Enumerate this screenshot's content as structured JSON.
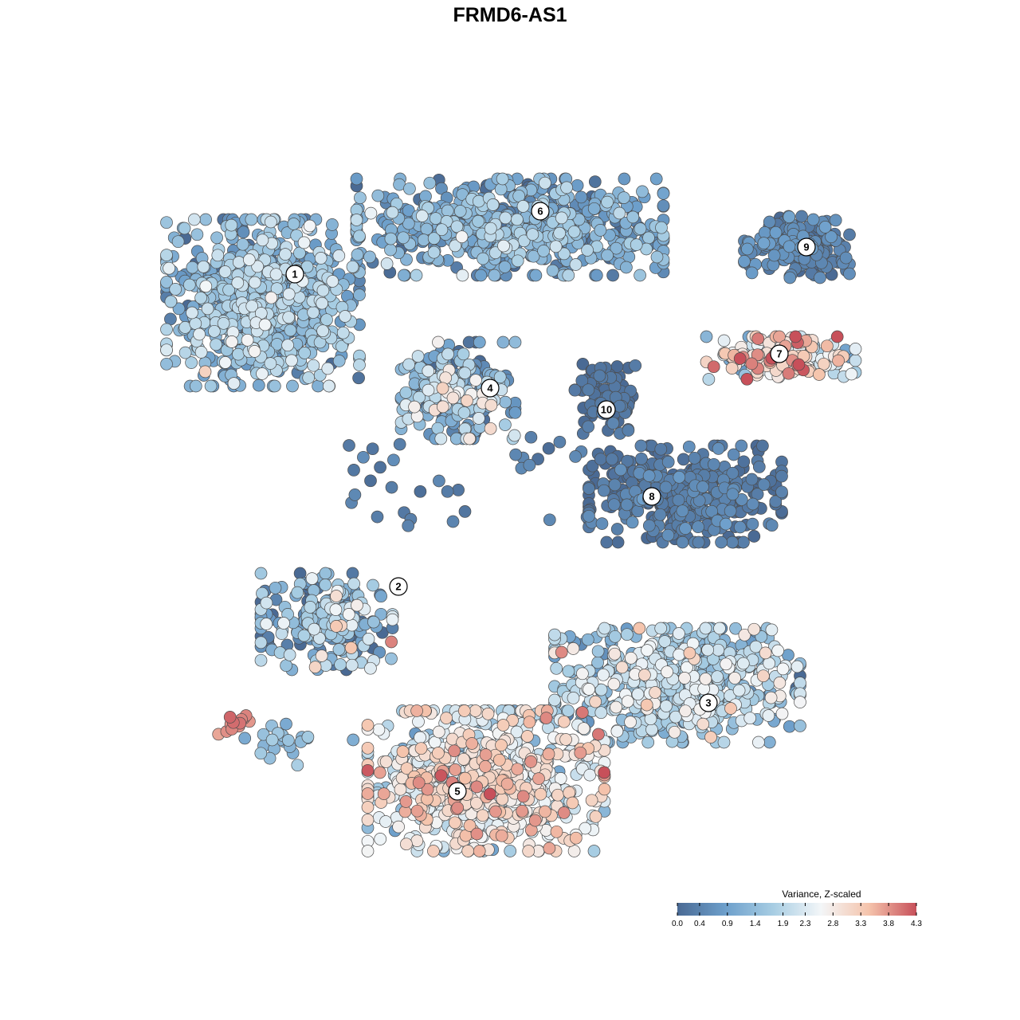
{
  "chart_data": {
    "type": "scatter",
    "title": "FRMD6-AS1",
    "xlabel": "",
    "ylabel": "",
    "grid": false,
    "axes_visible": false,
    "legend": {
      "title": "Variance, Z-scaled",
      "placement": "bottom-right",
      "range": [
        0.0,
        4.3
      ],
      "ticks": [
        "0.0",
        "0.4",
        "0.9",
        "1.4",
        "1.9",
        "2.3",
        "2.8",
        "3.3",
        "3.8",
        "4.3"
      ],
      "colors": [
        "#4a6a94",
        "#6d9fcb",
        "#a7cde3",
        "#f3f6f8",
        "#f5c4ac",
        "#c7505a"
      ]
    },
    "clusters": [
      {
        "label": "1",
        "mean_value": 1.3
      },
      {
        "label": "2",
        "mean_value": 1.2
      },
      {
        "label": "3",
        "mean_value": 1.7
      },
      {
        "label": "4",
        "mean_value": 1.2
      },
      {
        "label": "5",
        "mean_value": 2.5
      },
      {
        "label": "6",
        "mean_value": 1.0
      },
      {
        "label": "7",
        "mean_value": 2.6
      },
      {
        "label": "8",
        "mean_value": 0.2
      },
      {
        "label": "9",
        "mean_value": 0.4
      },
      {
        "label": "10",
        "mean_value": 0.1
      }
    ]
  }
}
